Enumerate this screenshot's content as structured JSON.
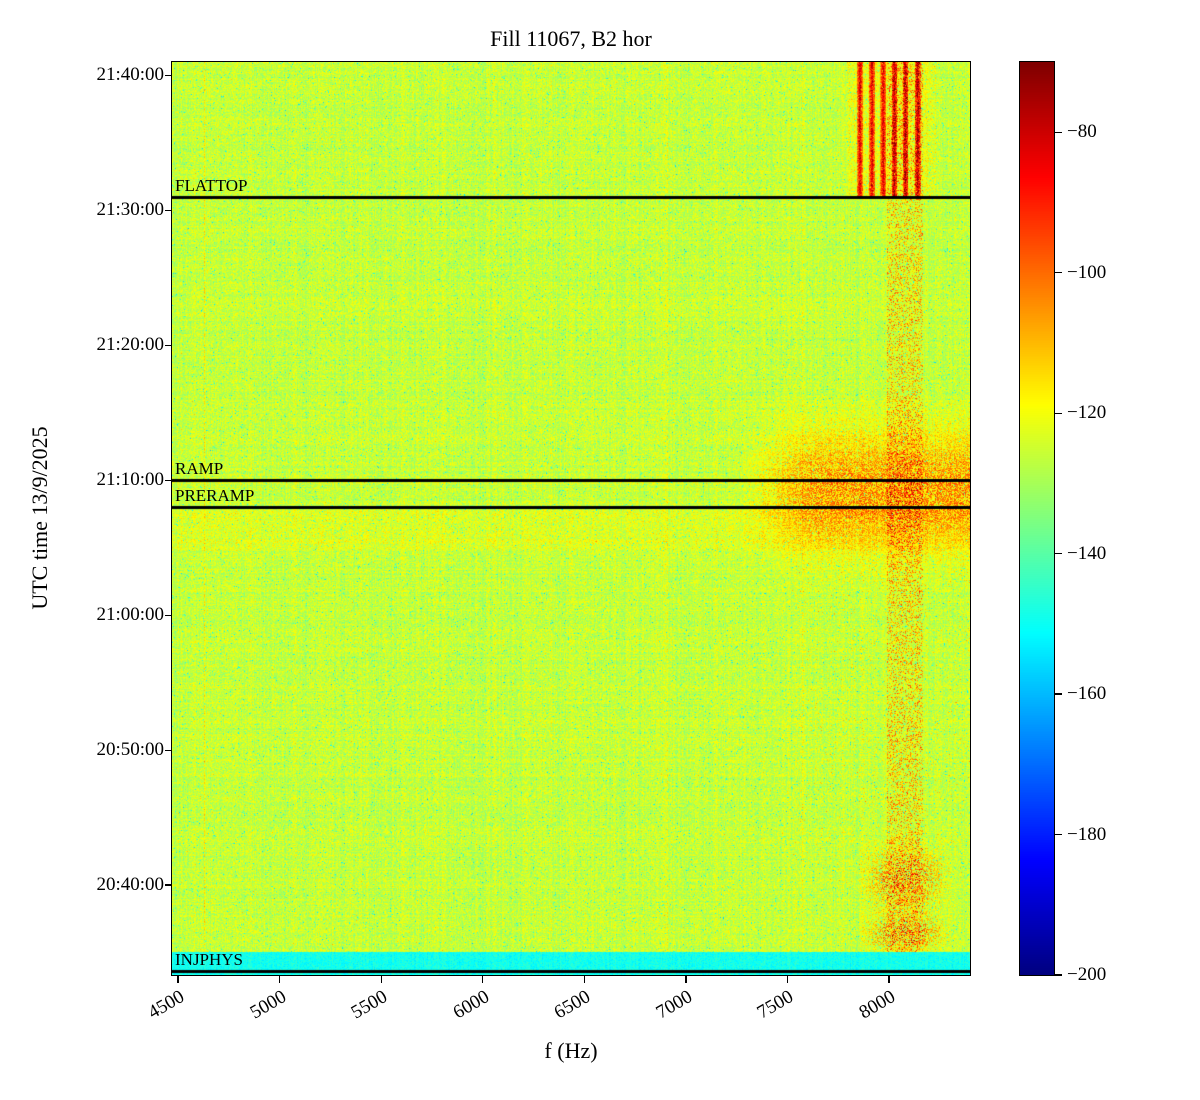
{
  "chart_data": {
    "type": "heatmap",
    "title": "Fill 11067, B2 hor",
    "xlabel": "f (Hz)",
    "ylabel": "UTC time 13/9/2025",
    "xlim": [
      4470,
      8400
    ],
    "x_ticks": [
      4500,
      5000,
      5500,
      6000,
      6500,
      7000,
      7500,
      8000
    ],
    "y_ticks": [
      "21:40:00",
      "21:30:00",
      "21:20:00",
      "21:10:00",
      "21:00:00",
      "20:50:00",
      "20:40:00"
    ],
    "time_range": [
      "20:33:20",
      "21:41:00"
    ],
    "colormap": "jet",
    "colorbar_range": [
      -200,
      -70
    ],
    "colorbar_ticks": [
      -80,
      -100,
      -120,
      -140,
      -160,
      -180,
      -200
    ],
    "background_level_db": -125,
    "grid": false,
    "legend": "none",
    "annotations": [
      {
        "label": "FLATTOP",
        "time": "21:31:00"
      },
      {
        "label": "RAMP",
        "time": "21:10:00"
      },
      {
        "label": "PRERAMP",
        "time": "21:08:00"
      },
      {
        "label": "INJPHYS",
        "time": "20:33:40"
      }
    ],
    "features": [
      "Uniform yellow-green broadband noise floor around -125 dB over the whole plane",
      "Several bright red/orange vertical lines near 7850-8150 Hz between 21:31 and 21:41 (above FLATTOP)",
      "Persistent speckled orange vertical band near 8000-8150 Hz over the full time span",
      "Diffuse orange blotch around 7300-8400 Hz between about 21:02 and 21:13 (around PRERAMP/RAMP)",
      "Scattered orange patches near 7850-8300 Hz between about 20:35 and 20:42",
      "Cyan horizontal band across all frequencies at the very bottom (about 20:33:30, INJPHYS)",
      "Horizontal black marker lines at the FLATTOP, RAMP, PRERAMP and INJPHYS times"
    ]
  }
}
